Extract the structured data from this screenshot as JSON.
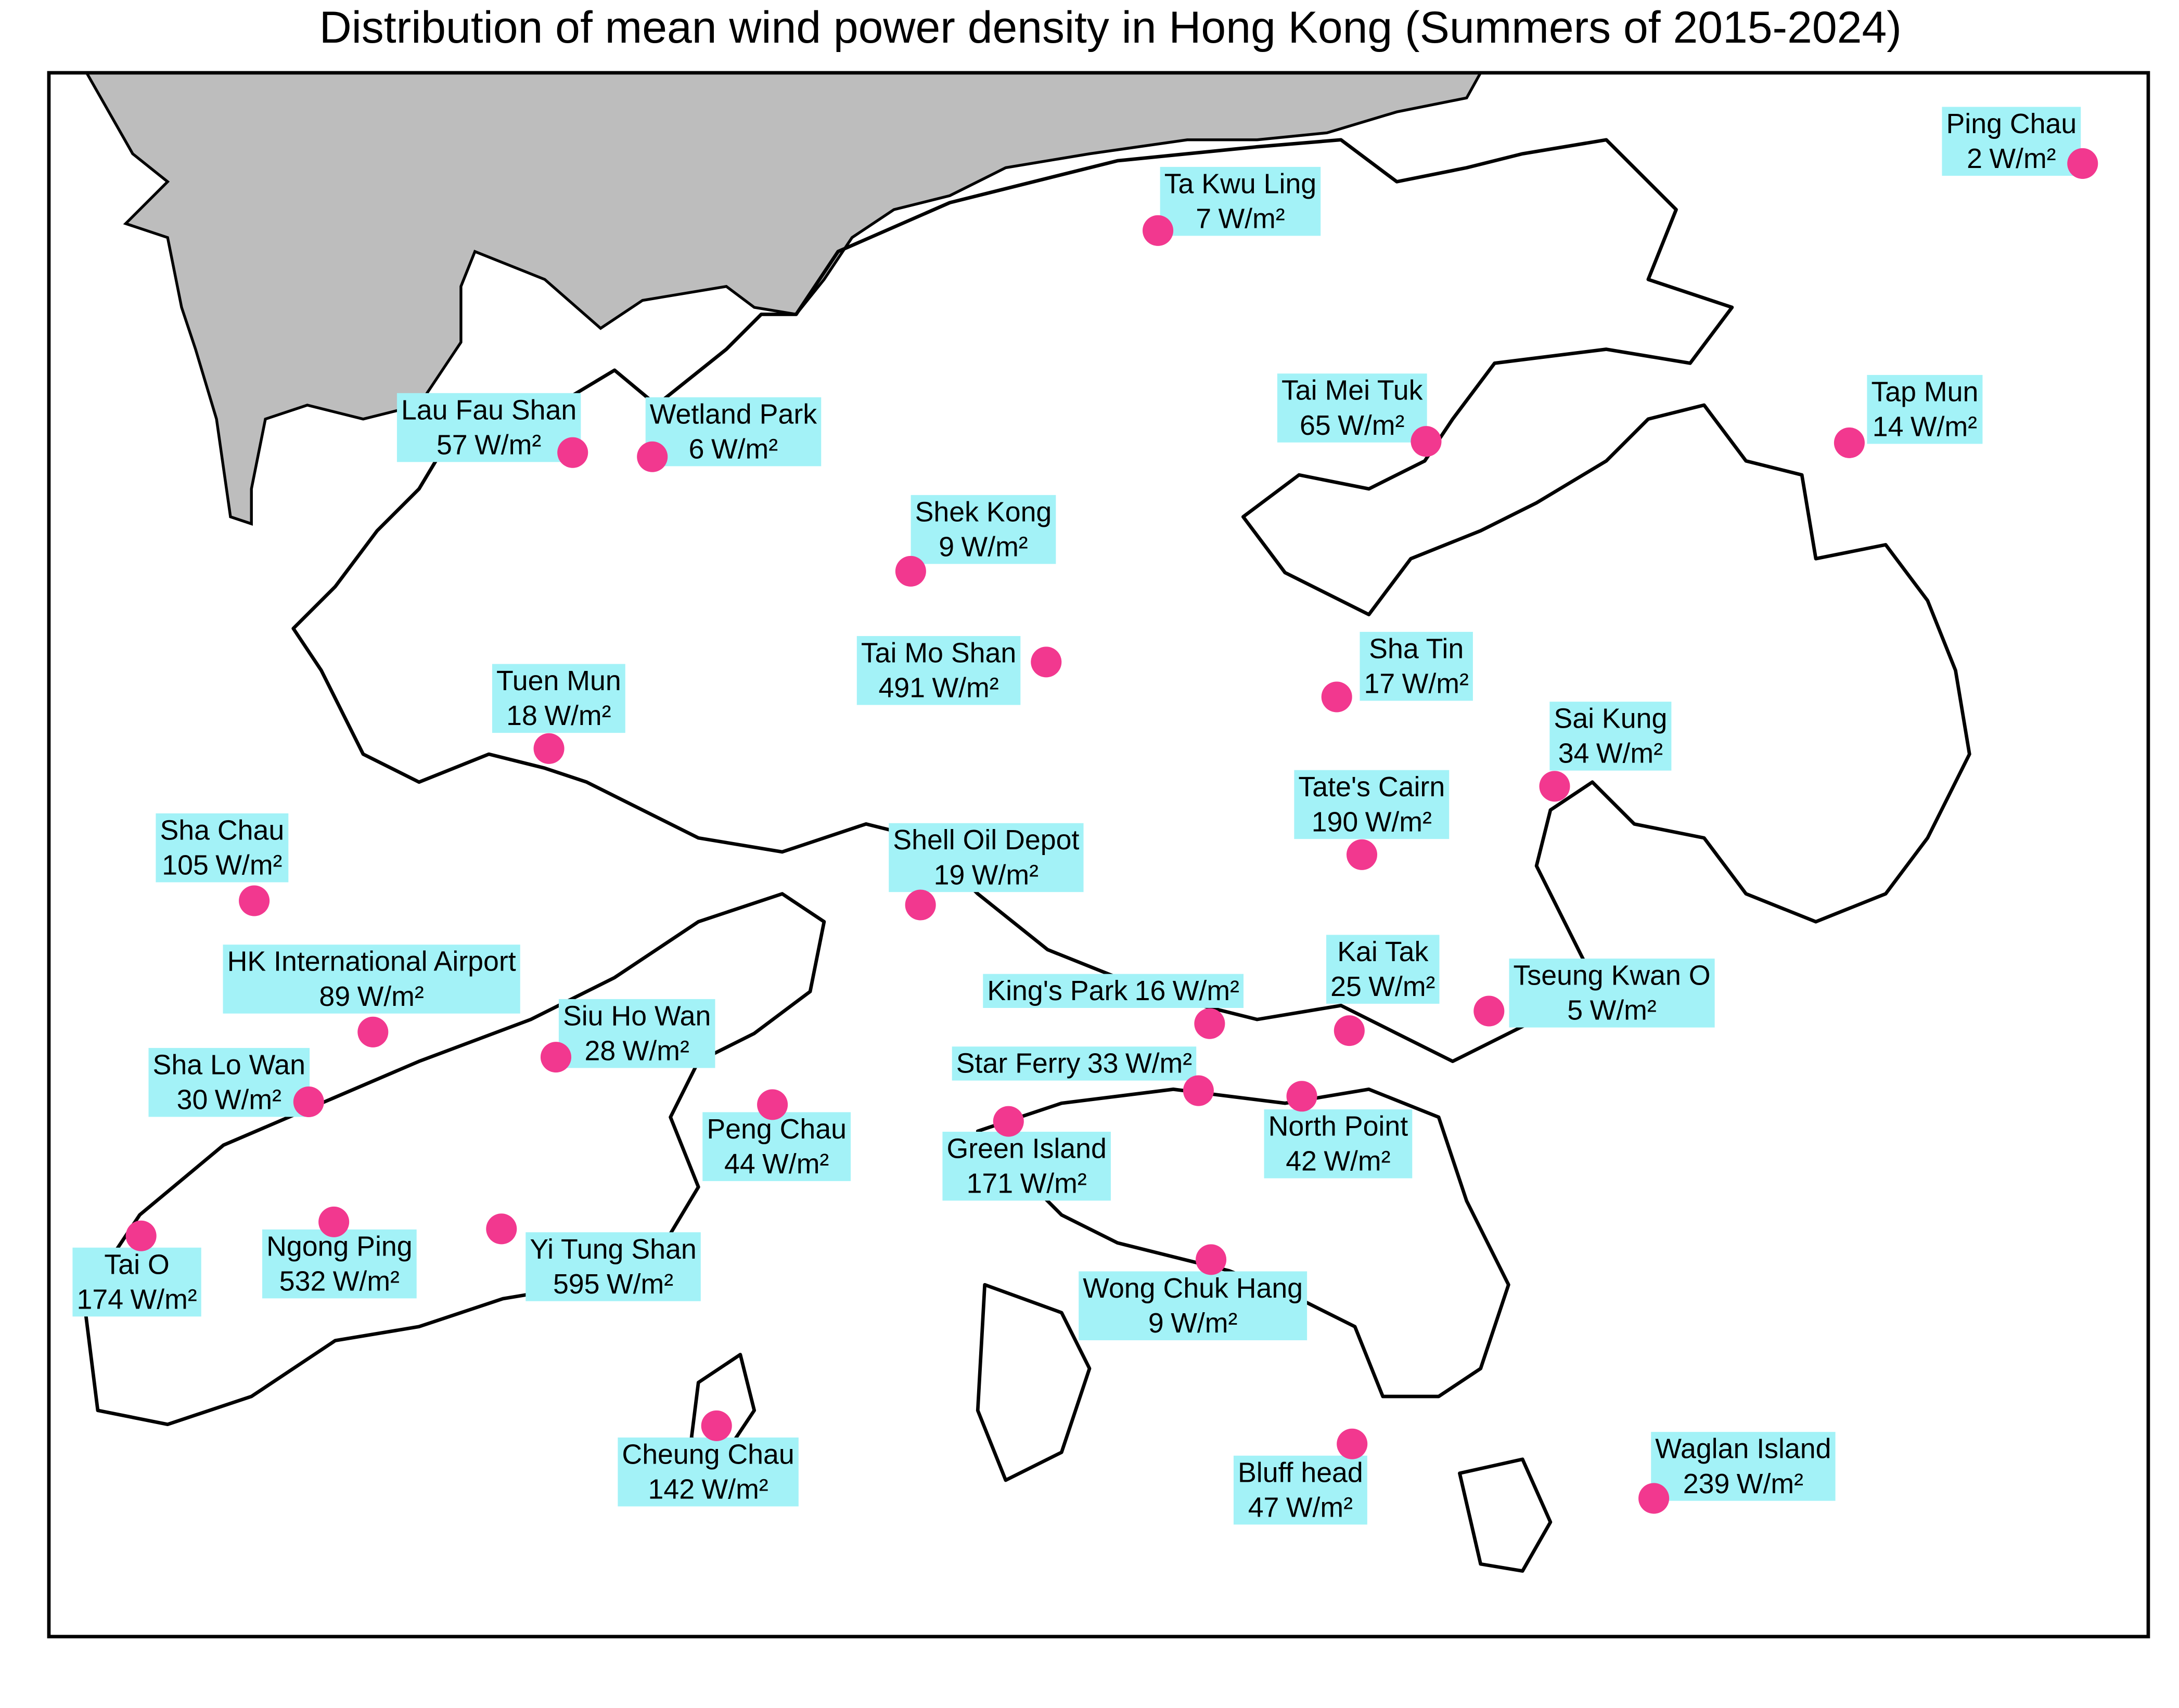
{
  "title": "Distribution of mean wind power density in Hong Kong (Summers of 2015-2024)",
  "unit": "W/m²",
  "stations": [
    {
      "name": "Ping Chau",
      "value": 2
    },
    {
      "name": "Ta Kwu Ling",
      "value": 7
    },
    {
      "name": "Lau Fau Shan",
      "value": 57
    },
    {
      "name": "Wetland Park",
      "value": 6
    },
    {
      "name": "Shek Kong",
      "value": 9
    },
    {
      "name": "Tai Mo Shan",
      "value": 491
    },
    {
      "name": "Tuen Mun",
      "value": 18
    },
    {
      "name": "Tai Mei Tuk",
      "value": 65
    },
    {
      "name": "Tap Mun",
      "value": 14
    },
    {
      "name": "Sha Tin",
      "value": 17
    },
    {
      "name": "Sai Kung",
      "value": 34
    },
    {
      "name": "Tate's Cairn",
      "value": 190
    },
    {
      "name": "Shell Oil Depot",
      "value": 19
    },
    {
      "name": "Sha Chau",
      "value": 105
    },
    {
      "name": "HK International Airport",
      "value": 89
    },
    {
      "name": "Siu Ho Wan",
      "value": 28
    },
    {
      "name": "Sha Lo Wan",
      "value": 30
    },
    {
      "name": "Peng Chau",
      "value": 44
    },
    {
      "name": "King's Park",
      "value": 16
    },
    {
      "name": "Kai Tak",
      "value": 25
    },
    {
      "name": "Tseung Kwan O",
      "value": 5
    },
    {
      "name": "Star Ferry",
      "value": 33
    },
    {
      "name": "North Point",
      "value": 42
    },
    {
      "name": "Green Island",
      "value": 171
    },
    {
      "name": "Tai O",
      "value": 174
    },
    {
      "name": "Ngong Ping",
      "value": 532
    },
    {
      "name": "Yi Tung Shan",
      "value": 595
    },
    {
      "name": "Wong Chuk Hang",
      "value": 9
    },
    {
      "name": "Cheung Chau",
      "value": 142
    },
    {
      "name": "Bluff head",
      "value": 47
    },
    {
      "name": "Waglan Island",
      "value": 239
    }
  ]
}
